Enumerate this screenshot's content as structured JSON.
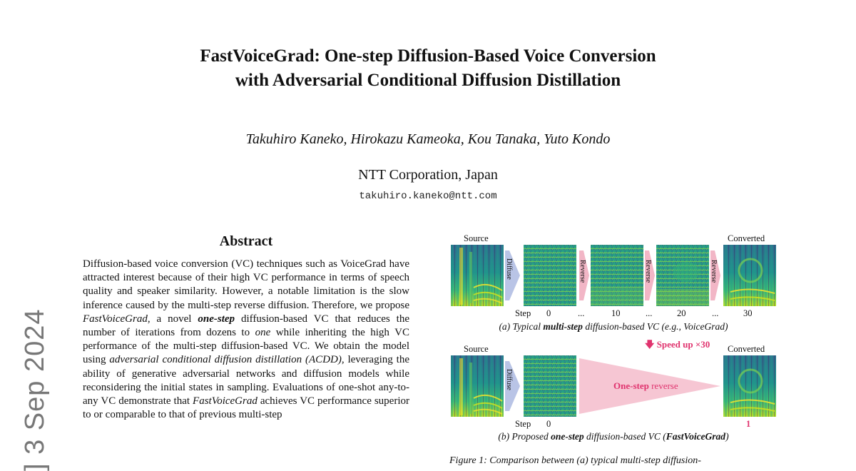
{
  "paper": {
    "title_line1": "FastVoiceGrad: One-step Diffusion-Based Voice Conversion",
    "title_line2": "with Adversarial Conditional Diffusion Distillation",
    "authors": "Takuhiro Kaneko, Hirokazu Kameoka, Kou Tanaka, Yuto Kondo",
    "affiliation": "NTT Corporation, Japan",
    "email": "takuhiro.kaneko@ntt.com",
    "arxiv_stamp": "] 3 Sep 2024"
  },
  "abstract": {
    "heading": "Abstract",
    "segments": [
      {
        "text": "Diffusion-based voice conversion (VC) techniques such as VoiceGrad have attracted interest because of their high VC performance in terms of speech quality and speaker similarity. However, a notable limitation is the slow inference caused by the multi-step reverse diffusion. Therefore, we propose ",
        "style": "normal"
      },
      {
        "text": "FastVoiceGrad",
        "style": "italic"
      },
      {
        "text": ", a novel ",
        "style": "normal"
      },
      {
        "text": "one-step",
        "style": "bolditalic"
      },
      {
        "text": " diffusion-based VC that reduces the number of iterations from dozens to ",
        "style": "normal"
      },
      {
        "text": "one",
        "style": "italic"
      },
      {
        "text": " while inheriting the high VC performance of the multi-step diffusion-based VC. We obtain the model using ",
        "style": "normal"
      },
      {
        "text": "adversarial conditional diffusion distillation (ACDD)",
        "style": "italic"
      },
      {
        "text": ", leveraging the ability of generative adversarial networks and diffusion models while reconsidering the initial states in sampling. Evaluations of one-shot any-to-any VC demonstrate that ",
        "style": "normal"
      },
      {
        "text": "FastVoiceGrad",
        "style": "italic"
      },
      {
        "text": " achieves VC performance superior to or comparable to that of previous multi-step",
        "style": "normal"
      }
    ]
  },
  "figure": {
    "a": {
      "source_label": "Source",
      "converted_label": "Converted",
      "diffuse_label": "Diffuse",
      "reverse_label": "Reverse",
      "step_label": "Step",
      "steps": [
        "0",
        "...",
        "10",
        "...",
        "20",
        "...",
        "30"
      ],
      "caption_pre": "(a) Typical ",
      "caption_bold": "multi-step",
      "caption_post": " diffusion-based VC (e.g., VoiceGrad)"
    },
    "speedup": "Speed up ×30",
    "b": {
      "source_label": "Source",
      "converted_label": "Converted",
      "diffuse_label": "Diffuse",
      "onestep_bold": "One-step",
      "onestep_rest": " reverse",
      "step_label": "Step",
      "step0": "0",
      "step1": "1",
      "caption_pre": "(b) Proposed ",
      "caption_bold": "one-step",
      "caption_mid": " diffusion-based VC (",
      "caption_name": "FastVoiceGrad",
      "caption_post": ")"
    },
    "fig_caption": "Figure 1: Comparison between (a) typical multi-step diffusion-",
    "colors": {
      "diffuse_arrow": "#b9c4e6",
      "reverse_arrow": "#f2b6c6",
      "accent": "#e0336e"
    }
  }
}
